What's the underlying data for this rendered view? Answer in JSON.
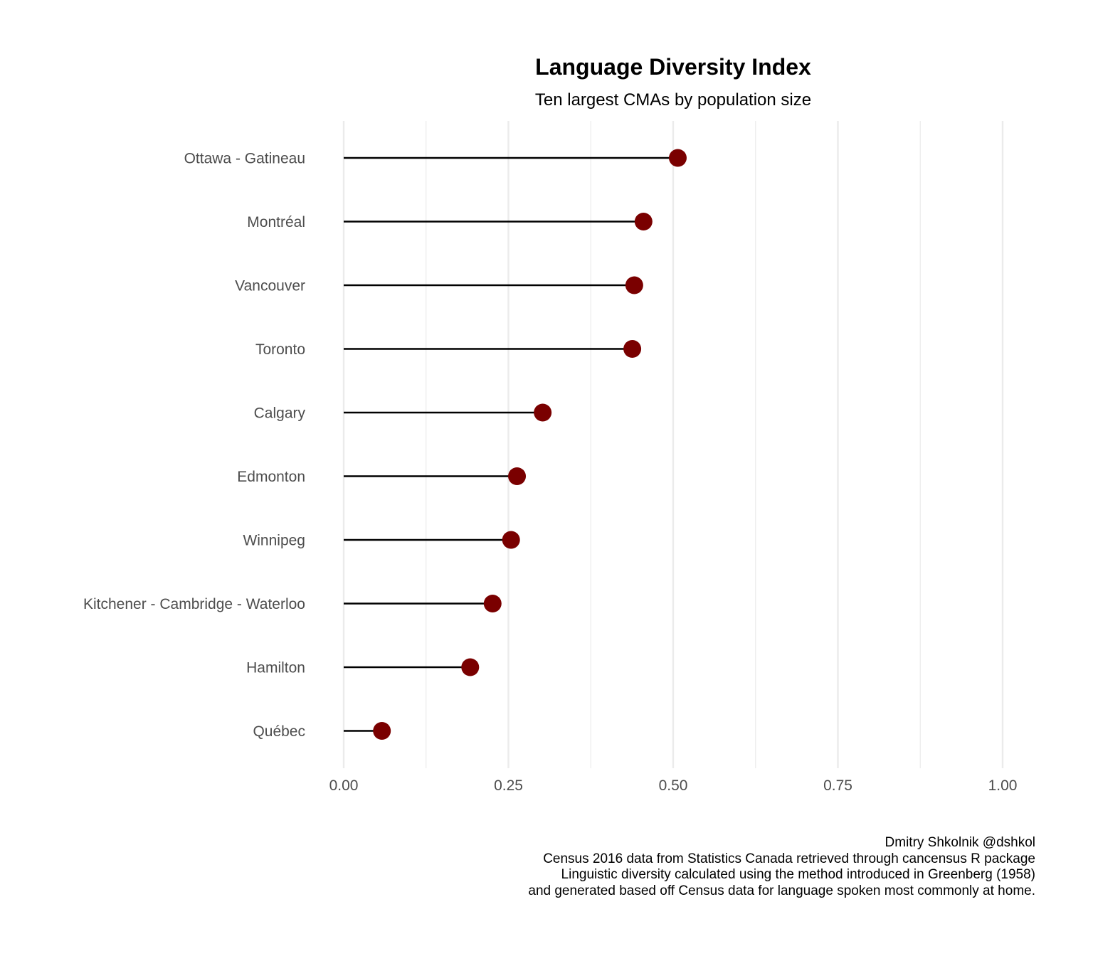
{
  "chart_data": {
    "type": "lollipop",
    "title": "Language Diversity Index",
    "subtitle": "Ten largest CMAs by population size",
    "xlabel": "",
    "ylabel": "",
    "xlim": [
      0,
      1
    ],
    "x_ticks": [
      0,
      0.25,
      0.5,
      0.75,
      1
    ],
    "x_tick_labels": [
      "0.00",
      "0.25",
      "0.50",
      "0.75",
      "1.00"
    ],
    "grid": "vertical",
    "categories": [
      "Ottawa - Gatineau",
      "Montréal",
      "Vancouver",
      "Toronto",
      "Calgary",
      "Edmonton",
      "Winnipeg",
      "Kitchener - Cambridge - Waterloo",
      "Hamilton",
      "Québec"
    ],
    "values": [
      0.507,
      0.455,
      0.441,
      0.438,
      0.302,
      0.263,
      0.254,
      0.226,
      0.192,
      0.058
    ],
    "point_color": "#7a0000",
    "stem_color": "#000000",
    "grid_color": "#ebebeb",
    "caption": [
      "Dmitry Shkolnik @dshkol",
      "Census 2016 data from Statistics Canada retrieved through cancensus R package",
      "Linguistic diversity calculated using the method introduced in Greenberg (1958)",
      "and generated based off Census data for language spoken most commonly at home."
    ]
  }
}
